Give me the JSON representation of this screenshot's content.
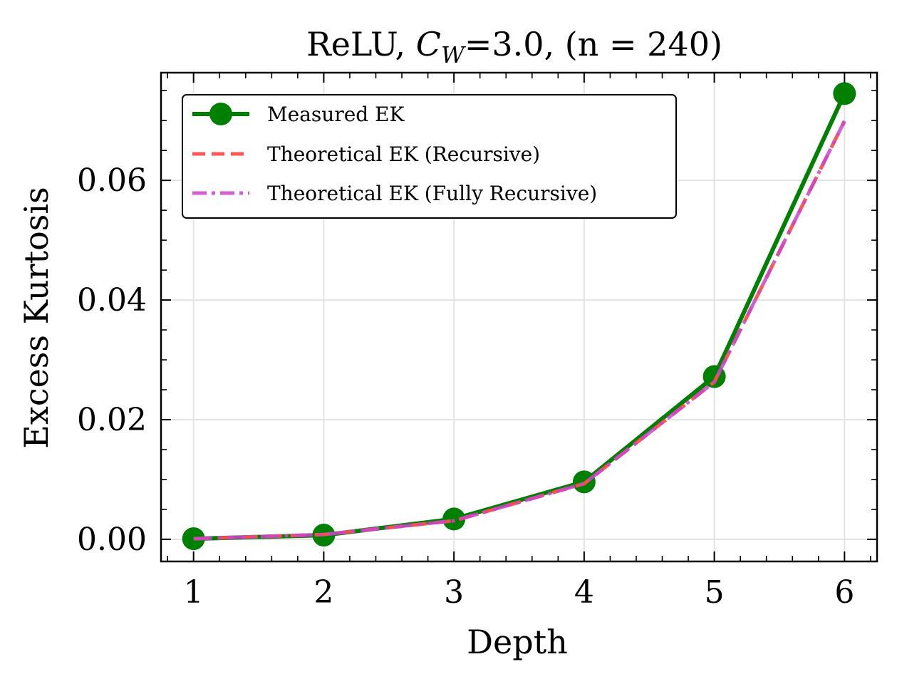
{
  "chart_data": {
    "type": "line",
    "title": "ReLU, C_W=3.0, (n = 240)",
    "title_parts": {
      "prefix": "ReLU, ",
      "var": "C",
      "sub": "W",
      "suffix": "=3.0, (n = 240)"
    },
    "xlabel": "Depth",
    "ylabel": "Excess Kurtosis",
    "xlim": [
      0.75,
      6.25
    ],
    "ylim": [
      -0.0037,
      0.078
    ],
    "x": [
      1,
      2,
      3,
      4,
      5,
      6
    ],
    "x_ticks": [
      1,
      2,
      3,
      4,
      5,
      6
    ],
    "x_tick_labels": [
      "1",
      "2",
      "3",
      "4",
      "5",
      "6"
    ],
    "y_ticks": [
      0.0,
      0.02,
      0.04,
      0.06
    ],
    "y_tick_labels": [
      "0.00",
      "0.02",
      "0.04",
      "0.06"
    ],
    "grid": true,
    "legend_position": "upper-left",
    "series": [
      {
        "name": "Measured EK",
        "color": "#008000",
        "style": "solid-marker",
        "values": [
          0.0001,
          0.0007,
          0.0034,
          0.0096,
          0.0272,
          0.0745
        ]
      },
      {
        "name": "Theoretical EK (Recursive)",
        "color": "#ff4d4d",
        "style": "dashed",
        "values": [
          0.0001,
          0.0008,
          0.0031,
          0.0093,
          0.0263,
          0.0699
        ]
      },
      {
        "name": "Theoretical EK (Fully Recursive)",
        "color": "#cc44cc",
        "style": "dashdot",
        "values": [
          0.0001,
          0.0008,
          0.0031,
          0.0093,
          0.0263,
          0.0699
        ]
      }
    ]
  }
}
